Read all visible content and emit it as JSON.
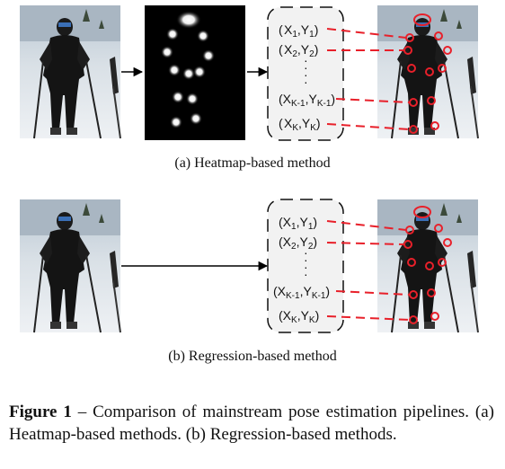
{
  "panel_a": {
    "caption": "(a)  Heatmap-based method",
    "coords": [
      {
        "x": "X",
        "xs": "1",
        "y": "Y",
        "ys": "1"
      },
      {
        "x": "X",
        "xs": "2",
        "y": "Y",
        "ys": "2"
      },
      {
        "x": "X",
        "xs": "K-1",
        "y": "Y",
        "ys": "K-1"
      },
      {
        "x": "X",
        "xs": "K",
        "y": "Y",
        "ys": "K"
      }
    ]
  },
  "panel_b": {
    "caption": "(b)  Regression-based method",
    "coords": [
      {
        "x": "X",
        "xs": "1",
        "y": "Y",
        "ys": "1"
      },
      {
        "x": "X",
        "xs": "2",
        "y": "Y",
        "ys": "2"
      },
      {
        "x": "X",
        "xs": "K-1",
        "y": "Y",
        "ys": "K-1"
      },
      {
        "x": "X",
        "xs": "K",
        "y": "Y",
        "ys": "K"
      }
    ]
  },
  "figure_caption": {
    "label": "Figure 1",
    "text": " – Comparison of mainstream pose estimation pipelines. (a) Heatmap-based methods. (b) Regression-based methods."
  },
  "colors": {
    "keypoint": "#e8202a",
    "link": "#e8202a",
    "heatmap_bg": "#000000",
    "box_fill": "#f2f2f2"
  }
}
